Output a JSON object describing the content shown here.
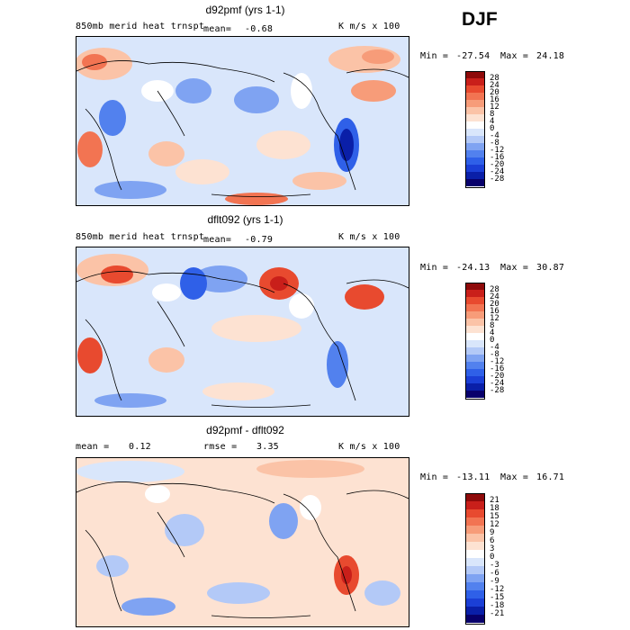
{
  "season": "DJF",
  "colors": {
    "neg28": "#08006b",
    "neg24": "#0a1fa8",
    "neg20": "#1b3fd6",
    "neg16": "#2f60e8",
    "neg12": "#5281ee",
    "neg8": "#7fa3f2",
    "neg4": "#b3c9f7",
    "neg0": "#d9e6fb",
    "zero": "#ffffff",
    "pos4": "#fde2d2",
    "pos8": "#fbc3a7",
    "pos12": "#f79c79",
    "pos16": "#f27452",
    "pos20": "#e84a2f",
    "pos24": "#c91f1a",
    "pos28": "#8e0a0a"
  },
  "panels": [
    {
      "title": "d92pmf (yrs 1-1)",
      "subtitle": "850mb merid heat trnspt",
      "mean_label": "mean=",
      "mean_value": "-0.68",
      "units": "K m/s x 100",
      "min_label": "Min =",
      "min_value": "-27.54",
      "max_label": "Max =",
      "max_value": "24.18",
      "colorbar_labels": [
        "28",
        "24",
        "20",
        "16",
        "12",
        "8",
        "4",
        "0",
        "-4",
        "-8",
        "-12",
        "-16",
        "-20",
        "-24",
        "-28"
      ]
    },
    {
      "title": "dflt092 (yrs 1-1)",
      "subtitle": "850mb merid heat trnspt",
      "mean_label": "mean=",
      "mean_value": "-0.79",
      "units": "K m/s x 100",
      "min_label": "Min =",
      "min_value": "-24.13",
      "max_label": "Max =",
      "max_value": "30.87",
      "colorbar_labels": [
        "28",
        "24",
        "20",
        "16",
        "12",
        "8",
        "4",
        "0",
        "-4",
        "-8",
        "-12",
        "-16",
        "-20",
        "-24",
        "-28"
      ]
    },
    {
      "title": "d92pmf - dflt092",
      "mean_label": "mean =",
      "mean_value": "0.12",
      "rmse_label": "rmse =",
      "rmse_value": "3.35",
      "units": "K m/s x 100",
      "min_label": "Min =",
      "min_value": "-13.11",
      "max_label": "Max =",
      "max_value": "16.71",
      "colorbar_labels": [
        "21",
        "18",
        "15",
        "12",
        "9",
        "6",
        "3",
        "0",
        "-3",
        "-6",
        "-9",
        "-12",
        "-15",
        "-18",
        "-21"
      ]
    }
  ]
}
